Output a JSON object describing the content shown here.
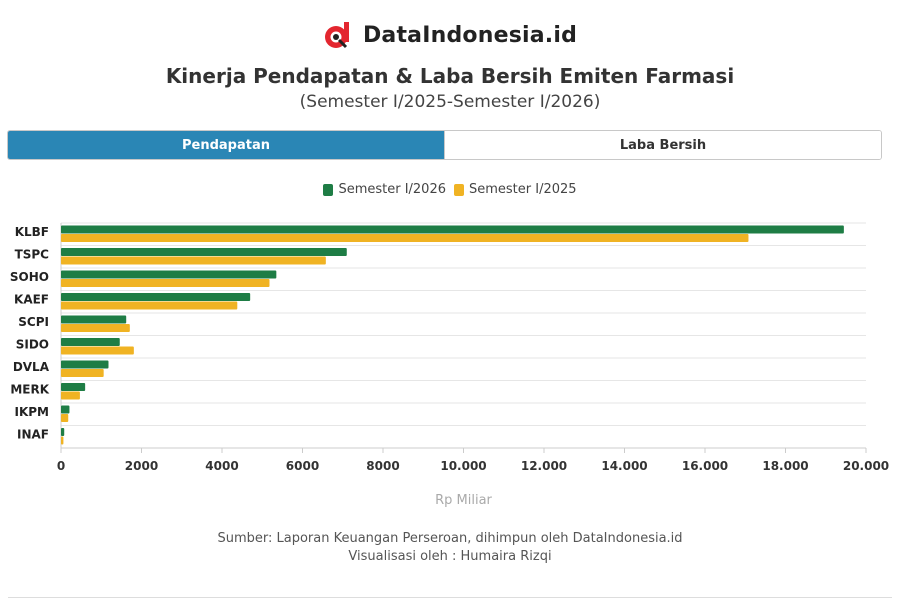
{
  "brand": {
    "name": "DataIndonesia.id",
    "logo_icon": "dataindonesia-logo-icon",
    "logo_color": "#e3262f"
  },
  "header": {
    "title": "Kinerja Pendapatan & Laba Bersih Emiten Farmasi",
    "subtitle": "(Semester I/2025-Semester I/2026)"
  },
  "tabs": [
    {
      "label": "Pendapatan",
      "active": true
    },
    {
      "label": "Laba Bersih",
      "active": false
    }
  ],
  "footer": {
    "source": "Sumber: Laporan Keuangan Perseroan, dihimpun oleh DataIndonesia.id",
    "credit": "Visualisasi oleh : Humaira Rizqi"
  },
  "chart_data": {
    "type": "bar",
    "orientation": "horizontal",
    "categories": [
      "KLBF",
      "TSPC",
      "SOHO",
      "KAEF",
      "SCPI",
      "SIDO",
      "DVLA",
      "MERK",
      "IKPM",
      "INAF"
    ],
    "series": [
      {
        "name": "Semester I/2026",
        "color": "#1e7d45",
        "values": [
          19450,
          7100,
          5350,
          4700,
          1620,
          1460,
          1180,
          600,
          210,
          80
        ]
      },
      {
        "name": "Semester I/2025",
        "color": "#f0b323",
        "values": [
          17080,
          6580,
          5180,
          4380,
          1710,
          1810,
          1060,
          470,
          180,
          60
        ]
      }
    ],
    "xlim": [
      0,
      20000
    ],
    "xticks": [
      "0",
      "2000",
      "4000",
      "6000",
      "8000",
      "10.000",
      "12.000",
      "14.000",
      "16.000",
      "18.000",
      "20.000"
    ],
    "xlabel": "Rp Miliar",
    "ylabel": "",
    "grid": true,
    "legend_position": "top-center"
  }
}
